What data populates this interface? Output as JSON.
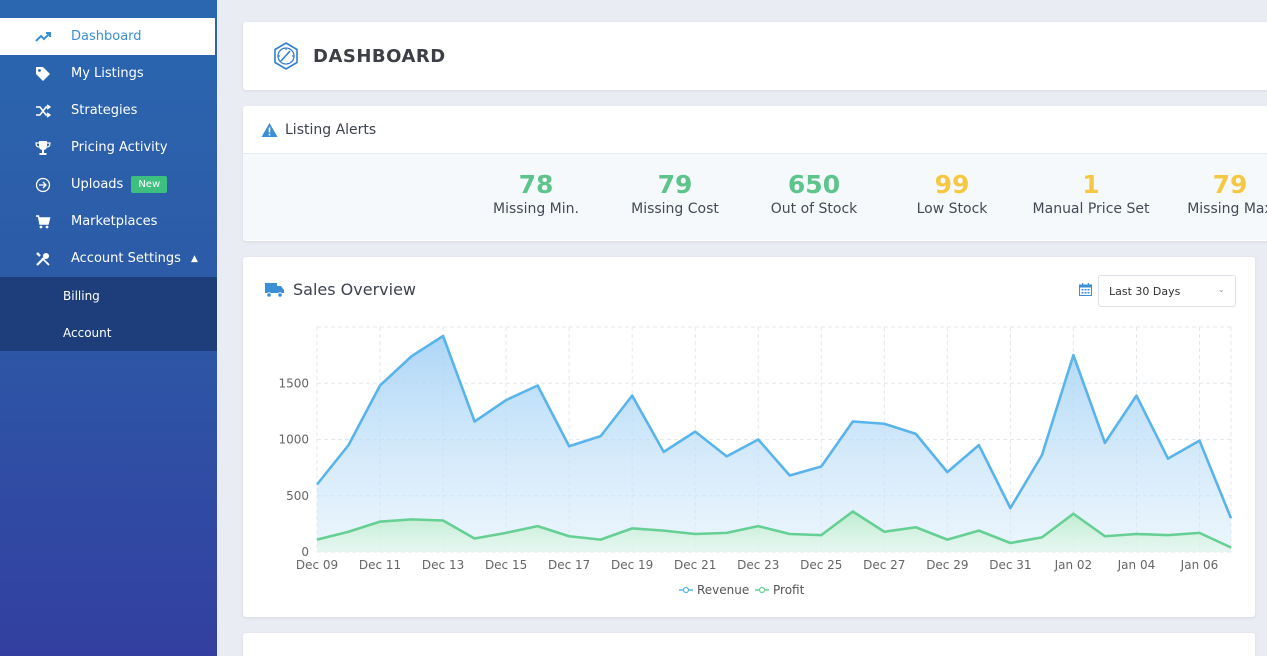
{
  "sidebar": {
    "items": [
      {
        "label": "Dashboard",
        "icon": "trend-up-icon",
        "active": true
      },
      {
        "label": "My Listings",
        "icon": "tag-icon"
      },
      {
        "label": "Strategies",
        "icon": "shuffle-icon"
      },
      {
        "label": "Pricing Activity",
        "icon": "trophy-icon"
      },
      {
        "label": "Uploads",
        "icon": "upload-circle-icon",
        "badge": "New"
      },
      {
        "label": "Marketplaces",
        "icon": "cart-icon"
      },
      {
        "label": "Account Settings",
        "icon": "tools-icon"
      }
    ],
    "subitems": [
      {
        "label": "Billing"
      },
      {
        "label": "Account"
      }
    ]
  },
  "header": {
    "title": "DASHBOARD",
    "icon": "speedometer-icon"
  },
  "alerts": {
    "title": "Listing Alerts",
    "icon": "warning-icon",
    "stats": [
      {
        "value": "78",
        "label": "Missing Min.",
        "color": "#5dc48c"
      },
      {
        "value": "79",
        "label": "Missing Cost",
        "color": "#5dc48c"
      },
      {
        "value": "650",
        "label": "Out of Stock",
        "color": "#5dc48c"
      },
      {
        "value": "99",
        "label": "Low Stock",
        "color": "#f5c844"
      },
      {
        "value": "1",
        "label": "Manual Price Set",
        "color": "#f5c844"
      },
      {
        "value": "79",
        "label": "Missing Max",
        "color": "#f5c844"
      }
    ]
  },
  "sales": {
    "title": "Sales Overview",
    "icon": "truck-icon",
    "range_icon": "calendar-icon",
    "range_value": "Last 30 Days"
  },
  "colors": {
    "revenue": "#5ab4ec",
    "profit": "#66cf94",
    "accent": "#3a8fd6"
  },
  "chart_data": {
    "type": "area",
    "x": [
      "Dec 09",
      "Dec 10",
      "Dec 11",
      "Dec 12",
      "Dec 13",
      "Dec 14",
      "Dec 15",
      "Dec 16",
      "Dec 17",
      "Dec 18",
      "Dec 19",
      "Dec 20",
      "Dec 21",
      "Dec 22",
      "Dec 23",
      "Dec 24",
      "Dec 25",
      "Dec 26",
      "Dec 27",
      "Dec 28",
      "Dec 29",
      "Dec 30",
      "Dec 31",
      "Jan 01",
      "Jan 02",
      "Jan 03",
      "Jan 04",
      "Jan 05",
      "Jan 06",
      "Jan 07"
    ],
    "tick_labels": [
      "Dec 09",
      "Dec 11",
      "Dec 13",
      "Dec 15",
      "Dec 17",
      "Dec 19",
      "Dec 21",
      "Dec 23",
      "Dec 25",
      "Dec 27",
      "Dec 29",
      "Dec 31",
      "Jan 02",
      "Jan 04",
      "Jan 06"
    ],
    "yticks": [
      "0",
      "500",
      "1000",
      "1500"
    ],
    "ylim": [
      0,
      2000
    ],
    "grid": true,
    "legend": "bottom-center",
    "series": [
      {
        "name": "Revenue",
        "values": [
          600,
          950,
          1480,
          1740,
          1920,
          1160,
          1350,
          1480,
          940,
          1030,
          1390,
          890,
          1070,
          850,
          1000,
          680,
          760,
          1160,
          1140,
          1050,
          710,
          950,
          390,
          860,
          1750,
          970,
          1390,
          830,
          990,
          300
        ]
      },
      {
        "name": "Profit",
        "values": [
          110,
          180,
          270,
          290,
          280,
          120,
          170,
          230,
          140,
          110,
          210,
          190,
          160,
          170,
          230,
          160,
          150,
          360,
          180,
          220,
          110,
          190,
          80,
          130,
          340,
          140,
          160,
          150,
          170,
          40
        ]
      }
    ]
  }
}
